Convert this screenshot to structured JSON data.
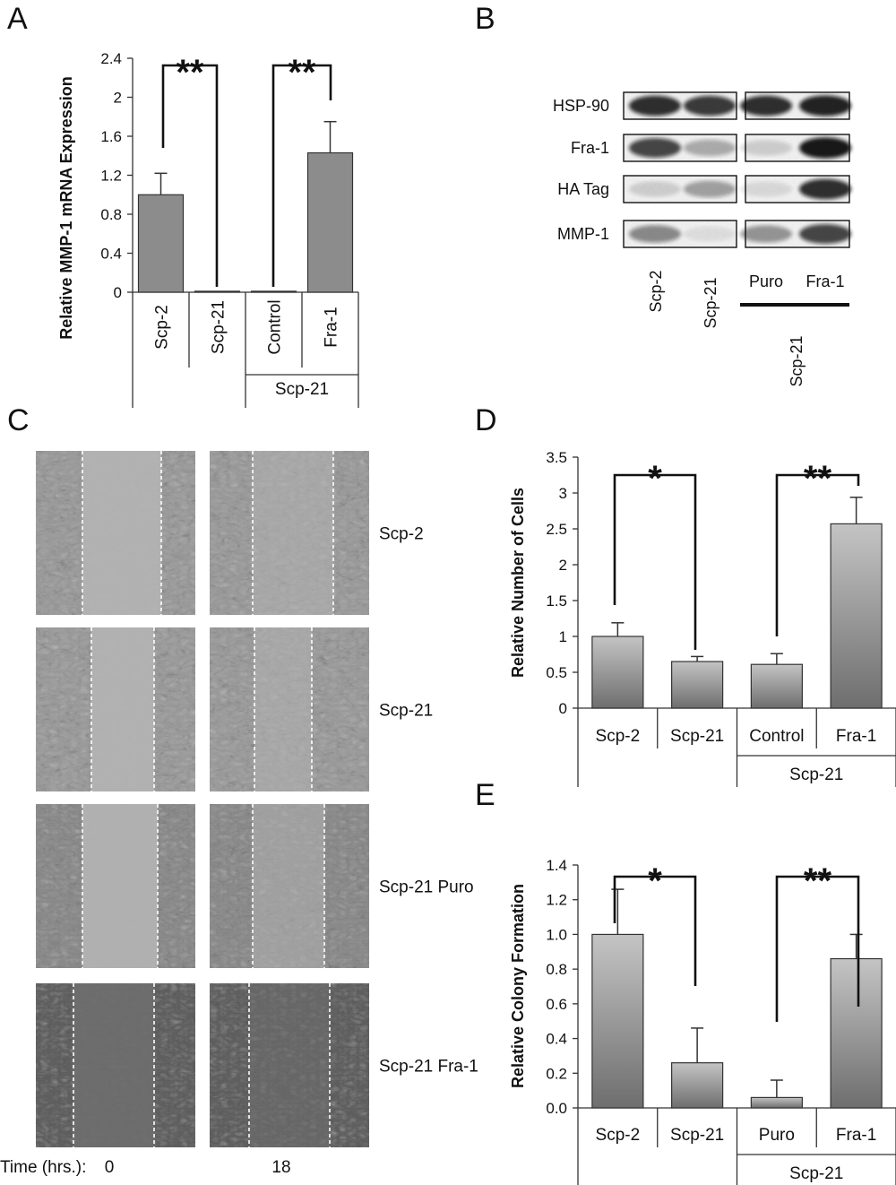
{
  "panels": {
    "A": "A",
    "B": "B",
    "C": "C",
    "D": "D",
    "E": "E"
  },
  "chart_data": [
    {
      "id": "A",
      "type": "bar",
      "categories": [
        "Scp-2",
        "Scp-21",
        "Control",
        "Fra-1"
      ],
      "group_label": "Scp-21",
      "values": [
        1.0,
        0.01,
        0.01,
        1.43
      ],
      "errors": [
        0.22,
        0,
        0,
        0.32
      ],
      "ylabel": "Relative MMP-1 mRNA Expression",
      "ylim": [
        0,
        2.4
      ],
      "yticks": [
        "0",
        "0.4",
        "0.8",
        "1.2",
        "1.6",
        "2",
        "2.4"
      ],
      "bar_color": "#8c8c8c",
      "significance": [
        {
          "between": [
            0,
            1
          ],
          "label": "**"
        },
        {
          "between": [
            2,
            3
          ],
          "label": "**"
        }
      ]
    },
    {
      "id": "D",
      "type": "bar",
      "categories": [
        "Scp-2",
        "Scp-21",
        "Control",
        "Fra-1"
      ],
      "group_label": "Scp-21",
      "values": [
        1.0,
        0.65,
        0.61,
        2.57
      ],
      "errors": [
        0.19,
        0.07,
        0.15,
        0.37
      ],
      "ylabel": "Relative Number of Cells",
      "ylim": [
        0,
        3.5
      ],
      "yticks": [
        "0",
        "0.5",
        "1",
        "1.5",
        "2",
        "2.5",
        "3",
        "3.5"
      ],
      "bar_color": "#9a9a9a",
      "significance": [
        {
          "between": [
            0,
            1
          ],
          "label": "*"
        },
        {
          "between": [
            2,
            3
          ],
          "label": "**"
        }
      ]
    },
    {
      "id": "E",
      "type": "bar",
      "categories": [
        "Scp-2",
        "Scp-21",
        "Puro",
        "Fra-1"
      ],
      "group_label": "Scp-21",
      "values": [
        1.0,
        0.26,
        0.06,
        0.86
      ],
      "errors": [
        0.26,
        0.2,
        0.1,
        0.14
      ],
      "ylabel": "Relative Colony Formation",
      "ylim": [
        0,
        1.4
      ],
      "yticks": [
        "0.0",
        "0.2",
        "0.4",
        "0.6",
        "0.8",
        "1.0",
        "1.2",
        "1.4"
      ],
      "bar_color": "#9a9a9a",
      "significance": [
        {
          "between": [
            0,
            1
          ],
          "label": "*"
        },
        {
          "between": [
            2,
            3
          ],
          "label": "**"
        }
      ]
    }
  ],
  "western_blot": {
    "rows": [
      "HSP-90",
      "Fra-1",
      "HA Tag",
      "MMP-1"
    ],
    "lanes": [
      "Scp-2",
      "Scp-21",
      "Puro",
      "Fra-1"
    ],
    "group_label": "Scp-21",
    "intensity": [
      [
        0.85,
        0.8,
        0.85,
        0.9
      ],
      [
        0.75,
        0.3,
        0.15,
        0.95
      ],
      [
        0.15,
        0.35,
        0.1,
        0.85
      ],
      [
        0.45,
        0.08,
        0.4,
        0.75
      ]
    ]
  },
  "scratch_assay": {
    "rows": [
      "Scp-2",
      "Scp-21",
      "Scp-21 Puro",
      "Scp-21 Fra-1"
    ],
    "time_label": "Time (hrs.):",
    "time_points": [
      "0",
      "18"
    ]
  }
}
